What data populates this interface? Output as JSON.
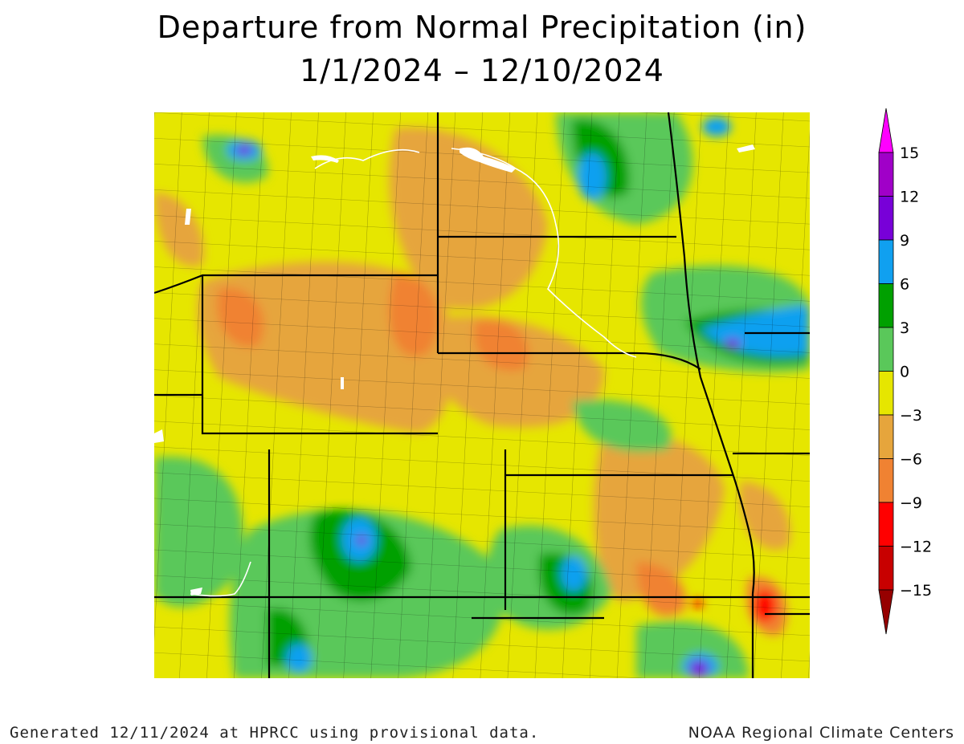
{
  "title": "Departure from Normal Precipitation (in)",
  "subtitle": "1/1/2024 – 12/10/2024",
  "footer_left": "Generated 12/11/2024 at HPRCC using provisional data.",
  "footer_right": "NOAA Regional Climate Centers",
  "legend": {
    "labels": [
      "15",
      "12",
      "9",
      "6",
      "3",
      "0",
      "−3",
      "−6",
      "−9",
      "−12",
      "−15"
    ],
    "bins_top_to_bottom": [
      {
        "color": "#a000c8"
      },
      {
        "color": "#7800d8"
      },
      {
        "color": "#10a0f0"
      },
      {
        "color": "#00a000"
      },
      {
        "color": "#5ac85a"
      },
      {
        "color": "#e6e600"
      },
      {
        "color": "#e6a53c"
      },
      {
        "color": "#f08232"
      },
      {
        "color": "#ff0000"
      },
      {
        "color": "#c80000"
      }
    ],
    "top_arrow_color": "#ff00ff",
    "bottom_arrow_color": "#960000"
  }
}
